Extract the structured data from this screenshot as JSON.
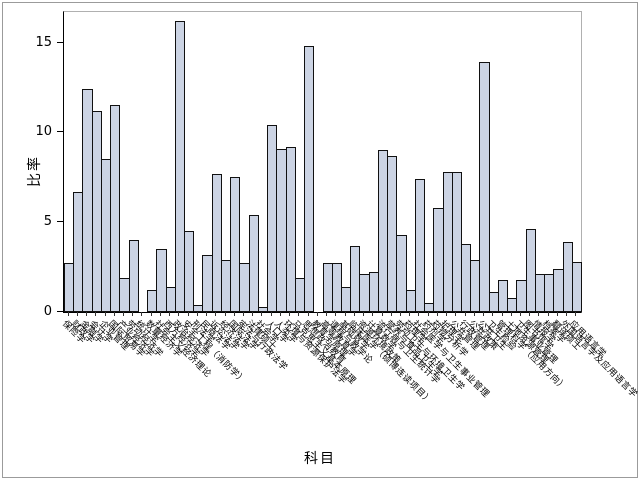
{
  "figure": {
    "background": "#ffffff",
    "frame_color": "#9b9b9b"
  },
  "chart_data": {
    "type": "bar",
    "title": "",
    "xlabel": "科目",
    "ylabel": "比率",
    "yticks": [
      0,
      5,
      10,
      15
    ],
    "ylim": [
      0,
      16.7
    ],
    "grid": false,
    "legend": "none",
    "bar_fill": "#ccd4e4",
    "bar_stroke": "#111111",
    "categories": [
      "保险学",
      "财政学",
      "金融学",
      "会计学",
      "企业管理",
      "国际贸易学",
      "产业经济学",
      "劳动经济学",
      "统计学",
      "数量经济学",
      "社会主义经济理论",
      "西方经济学",
      "政治经济学",
      "安全工程（消防学）",
      "刑法学",
      "民商法学",
      "诉讼法学",
      "经济法学",
      "国际法学",
      "宪法与行政法学",
      "法律硕士",
      "社会学",
      "人口学",
      "人类学",
      "环境与资源保护法学",
      "马克思主义基本原理",
      "思想政治教育",
      "教育学原理",
      "高等教育学",
      "课程与教学论",
      "基础数学",
      "临床医学（硕博连读项目）",
      "资源环境政策",
      "计算数学",
      "流行病与卫生统计学",
      "营养与食品卫生学",
      "劳动卫生与环境卫生学",
      "药理学",
      "社会医学与卫生事业管理",
      "药剂学",
      "药物分析学",
      "护理学",
      "公共管理",
      "行政管理",
      "公共政策",
      "公共卫生",
      "卫生检验",
      "管理科学（应用方向）",
      "土地资源管理",
      "卫生事业管理",
      "图书馆学",
      "情报学",
      "档案学",
      "翻译硕士",
      "外国语言学及应用语言学",
      "应用语言学"
    ],
    "values": [
      2.7,
      6.7,
      12.4,
      11.2,
      8.5,
      11.5,
      1.9,
      4.0,
      0,
      1.2,
      3.5,
      1.4,
      16.2,
      4.5,
      0.4,
      3.2,
      7.7,
      2.9,
      7.5,
      2.7,
      5.4,
      0.3,
      10.4,
      9.1,
      9.2,
      1.9,
      14.8,
      0,
      2.7,
      2.7,
      1.4,
      3.7,
      2.1,
      2.2,
      9.0,
      8.7,
      4.3,
      1.2,
      7.4,
      0.5,
      5.8,
      7.8,
      7.8,
      3.8,
      2.9,
      13.9,
      1.1,
      1.8,
      0.8,
      1.8,
      4.6,
      2.1,
      2.1,
      2.4,
      3.9,
      2.8
    ]
  }
}
